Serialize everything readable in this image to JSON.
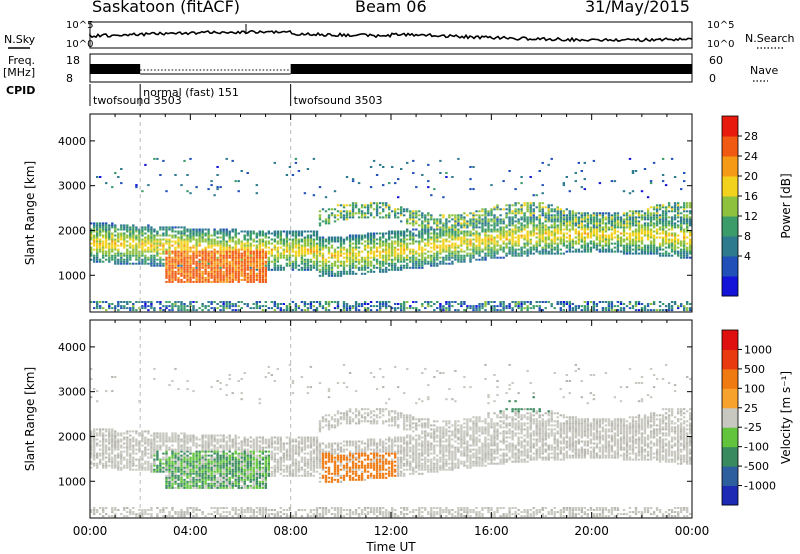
{
  "header": {
    "station": "Saskatoon (fitACF)",
    "beam": "Beam 06",
    "date": "31/May/2015"
  },
  "left_labels": {
    "nsky": "N.Sky",
    "freq_line1": "Freq.",
    "freq_line2": "[MHz]",
    "cpid": "CPID"
  },
  "right_labels": {
    "nsearch": "N.Search",
    "nave": "Nave"
  },
  "strip_axes": {
    "noise_left_ticks": [
      "10^5",
      "10^0"
    ],
    "noise_right_ticks": [
      "10^5",
      "10^0"
    ],
    "freq_left_ticks": [
      "18",
      "8"
    ],
    "nave_right_ticks": [
      "60",
      "0"
    ]
  },
  "cpid_segments": [
    {
      "label": "twofsound 3503",
      "start_h": 0,
      "end_h": 2
    },
    {
      "label": "normal (fast) 151",
      "start_h": 2,
      "end_h": 8
    },
    {
      "label": "twofsound 3503",
      "start_h": 8,
      "end_h": 24
    }
  ],
  "chart_data": [
    {
      "type": "heatmap",
      "name": "power",
      "ylabel": "Slant Range [km]",
      "ylim": [
        180,
        4600
      ],
      "yticks": [
        1000,
        2000,
        3000,
        4000
      ],
      "xlim": [
        0,
        24
      ],
      "colorbar": {
        "label": "Power [dB]",
        "ticks": [
          "28",
          "24",
          "20",
          "16",
          "12",
          "8",
          "4"
        ],
        "colors": [
          "#1414d8",
          "#2050b8",
          "#2d7a8f",
          "#3b9c6a",
          "#8dc13e",
          "#f2d21c",
          "#f59a16",
          "#f05a12",
          "#e81a0e"
        ]
      }
    },
    {
      "type": "heatmap",
      "name": "velocity",
      "ylabel": "Slant Range [km]",
      "ylim": [
        180,
        4600
      ],
      "yticks": [
        1000,
        2000,
        3000,
        4000
      ],
      "xlim": [
        0,
        24
      ],
      "xlabel": "Time UT",
      "xticks": [
        "00:00",
        "04:00",
        "08:00",
        "12:00",
        "16:00",
        "20:00",
        "00:00"
      ],
      "colorbar": {
        "label": "Velocity [m s⁻¹]",
        "ticks": [
          "1000",
          "500",
          "100",
          "25",
          "-25",
          "-100",
          "-500",
          "-1000"
        ],
        "colors": [
          "#1c2ab4",
          "#2d5f9e",
          "#3a8a5f",
          "#62c43c",
          "#c8c8c0",
          "#f6a22c",
          "#f07a12",
          "#e83a0e",
          "#e01010"
        ]
      }
    }
  ]
}
